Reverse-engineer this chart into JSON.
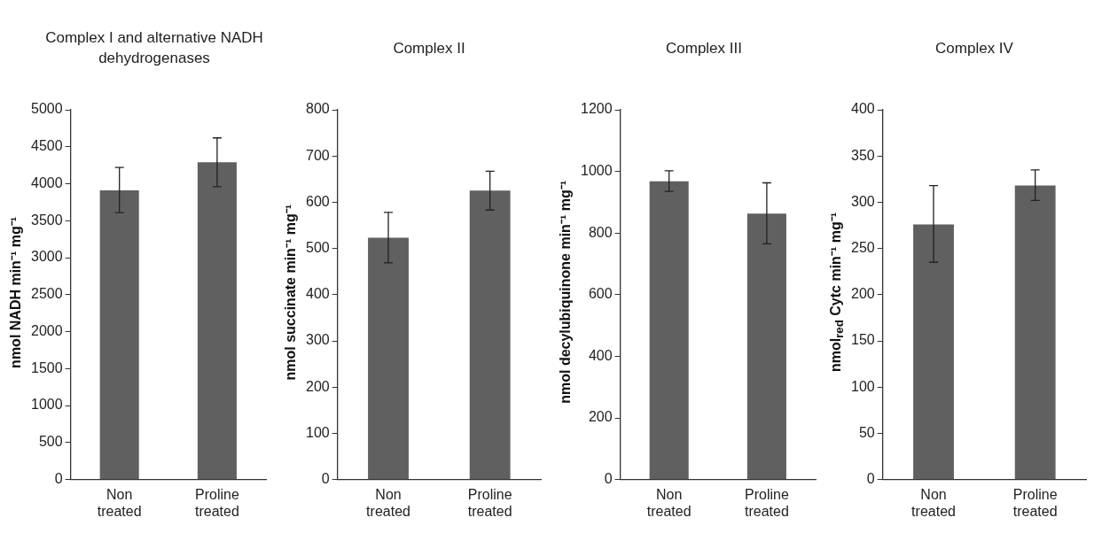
{
  "chart_data": [
    {
      "type": "bar",
      "title": "Complex I and alternative NADH dehydrogenases",
      "ylabel": "nmol NADH min⁻¹ mg⁻¹",
      "categories": [
        "Non treated",
        "Proline treated"
      ],
      "values": [
        3910,
        4290
      ],
      "errors": [
        [
          3610,
          4220
        ],
        [
          3960,
          4620
        ]
      ],
      "color": "#606060",
      "ylim": [
        0,
        5000
      ],
      "yticks": [
        0,
        500,
        1000,
        1500,
        2000,
        2500,
        3000,
        3500,
        4000,
        4500,
        5000
      ],
      "grid": false,
      "legend": false
    },
    {
      "type": "bar",
      "title": "Complex II",
      "ylabel": "nmol succinate min⁻¹ mg⁻¹",
      "categories": [
        "Non treated",
        "Proline treated"
      ],
      "values": [
        523,
        625
      ],
      "errors": [
        [
          469,
          578
        ],
        [
          583,
          667
        ]
      ],
      "color": "#606060",
      "ylim": [
        0,
        800
      ],
      "yticks": [
        0,
        100,
        200,
        300,
        400,
        500,
        600,
        700,
        800
      ],
      "grid": false,
      "legend": false
    },
    {
      "type": "bar",
      "title": "Complex III",
      "ylabel": "nmol decylubiquinone min⁻¹ mg⁻¹",
      "categories": [
        "Non treated",
        "Proline treated"
      ],
      "values": [
        968,
        863
      ],
      "errors": [
        [
          935,
          1002
        ],
        [
          765,
          963
        ]
      ],
      "color": "#606060",
      "ylim": [
        0,
        1200
      ],
      "yticks": [
        0,
        200,
        400,
        600,
        800,
        1000,
        1200
      ],
      "grid": false,
      "legend": false
    },
    {
      "type": "bar",
      "title": "Complex IV",
      "ylabel": "nmol$_{red}$ Cytc min⁻¹ mg⁻¹",
      "categories": [
        "Non treated",
        "Proline treated"
      ],
      "values": [
        276,
        318
      ],
      "errors": [
        [
          235,
          318
        ],
        [
          302,
          335
        ]
      ],
      "color": "#606060",
      "ylim": [
        0,
        400
      ],
      "yticks": [
        0,
        50,
        100,
        150,
        200,
        250,
        300,
        350,
        400
      ],
      "grid": false,
      "legend": false
    }
  ]
}
